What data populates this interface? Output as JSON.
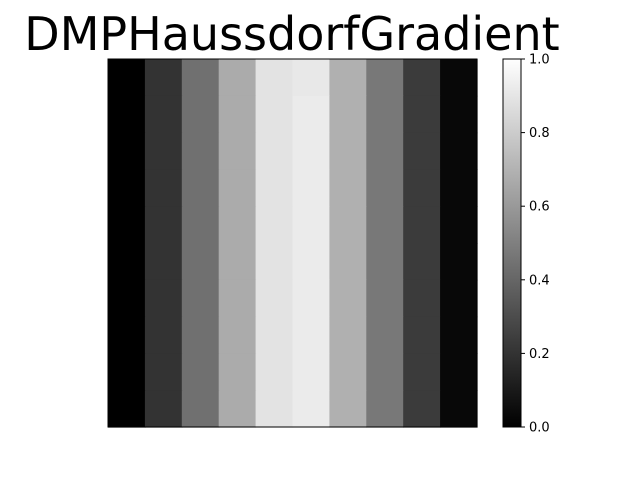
{
  "chart_data": {
    "type": "heatmap",
    "title": "DMPHaussdorfGradient",
    "xlabel": "",
    "ylabel": "",
    "colormap": "gray",
    "grid": false,
    "columns": 10,
    "rows": 10,
    "values": [
      [
        0.0,
        0.2,
        0.44,
        0.67,
        0.89,
        0.91,
        0.69,
        0.47,
        0.23,
        0.03
      ],
      [
        0.0,
        0.2,
        0.44,
        0.67,
        0.89,
        0.92,
        0.69,
        0.47,
        0.23,
        0.03
      ],
      [
        0.0,
        0.2,
        0.44,
        0.67,
        0.89,
        0.92,
        0.69,
        0.47,
        0.23,
        0.03
      ],
      [
        0.0,
        0.2,
        0.44,
        0.67,
        0.89,
        0.92,
        0.69,
        0.47,
        0.23,
        0.03
      ],
      [
        0.0,
        0.2,
        0.44,
        0.67,
        0.89,
        0.92,
        0.69,
        0.47,
        0.23,
        0.03
      ],
      [
        0.0,
        0.2,
        0.44,
        0.67,
        0.89,
        0.92,
        0.69,
        0.47,
        0.23,
        0.03
      ],
      [
        0.0,
        0.2,
        0.44,
        0.67,
        0.89,
        0.92,
        0.69,
        0.47,
        0.23,
        0.03
      ],
      [
        0.0,
        0.2,
        0.44,
        0.67,
        0.89,
        0.92,
        0.69,
        0.47,
        0.23,
        0.03
      ],
      [
        0.0,
        0.2,
        0.44,
        0.67,
        0.89,
        0.92,
        0.69,
        0.47,
        0.23,
        0.03
      ],
      [
        0.0,
        0.2,
        0.44,
        0.67,
        0.89,
        0.92,
        0.69,
        0.47,
        0.23,
        0.03
      ]
    ],
    "colorbar": {
      "range": [
        0.0,
        1.0
      ],
      "ticks": [
        0.0,
        0.2,
        0.4,
        0.6,
        0.8,
        1.0
      ],
      "tick_labels": [
        "0.0",
        "0.2",
        "0.4",
        "0.6",
        "0.8",
        "1.0"
      ]
    }
  }
}
